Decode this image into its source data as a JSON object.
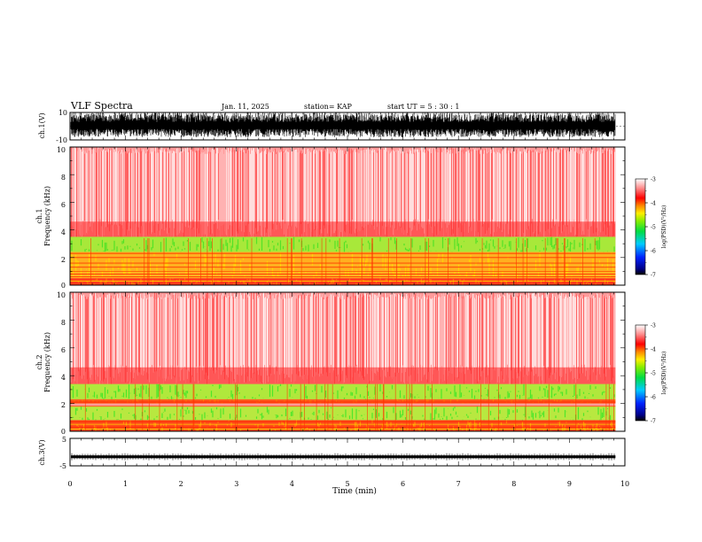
{
  "header": {
    "title": "VLF Spectra",
    "date": "Jan. 11, 2025",
    "station": "station= KAP",
    "start": "start  UT =   5 : 30 : 1"
  },
  "chart_data": [
    {
      "type": "line",
      "id": "ch1-waveform",
      "ylabel": "ch.1(V)",
      "ylim": [
        -10,
        10
      ],
      "ytick_labels": [
        "10",
        "-10"
      ],
      "xlim": [
        0,
        10
      ],
      "data_end_min": 9.83,
      "description": "dense black waveform, amplitude mostly between -8 V and 10 V"
    },
    {
      "type": "heatmap",
      "id": "ch1-spectrogram",
      "ylabel": "ch.1",
      "ylabel2": "Frequency (kHz)",
      "ylim": [
        0,
        10
      ],
      "ytick_labels": [
        "0",
        "2",
        "4",
        "6",
        "8",
        "10"
      ],
      "xlim": [
        0,
        10
      ],
      "colorbar": {
        "label": "log(PSD)(V²/Hz)",
        "range": [
          -7,
          -3
        ],
        "tick_labels": [
          "-3",
          "-4",
          "-5",
          "-6",
          "-7"
        ]
      },
      "bands_khz": [
        {
          "from": 3.5,
          "to": 10,
          "level": "weak (log PSD about -3.3 to -3.8, white/pink/red)"
        },
        {
          "from": 2.4,
          "to": 3.5,
          "level": "green-yellow (log PSD about -4.5)"
        },
        {
          "from": 0.5,
          "to": 2.4,
          "level": "yellow-orange-red with horizontal lines"
        },
        {
          "from": 0,
          "to": 0.5,
          "level": "red"
        }
      ]
    },
    {
      "type": "heatmap",
      "id": "ch2-spectrogram",
      "ylabel": "ch.2",
      "ylabel2": "Frequency (kHz)",
      "ylim": [
        0,
        10
      ],
      "ytick_labels": [
        "0",
        "2",
        "4",
        "6",
        "8",
        "10"
      ],
      "xlim": [
        0,
        10
      ],
      "colorbar": {
        "label": "log(PSD)(V²/Hz)",
        "range": [
          -7,
          -3
        ],
        "tick_labels": [
          "-3",
          "-4",
          "-5",
          "-6",
          "-7"
        ]
      },
      "bands_khz": [
        {
          "from": 3.5,
          "to": 10,
          "level": "weak (white/pink/red)"
        },
        {
          "from": 2.3,
          "to": 3.4,
          "level": "green-yellow"
        },
        {
          "from": 2.0,
          "to": 2.3,
          "level": "orange-red line"
        },
        {
          "from": 0.8,
          "to": 1.8,
          "level": "green-yellow"
        },
        {
          "from": 0,
          "to": 0.8,
          "level": "red-orange lines"
        }
      ]
    },
    {
      "type": "line",
      "id": "ch3-waveform",
      "ylabel": "ch.3(V)",
      "ylim": [
        -5,
        5
      ],
      "ytick_labels": [
        "5",
        "-5"
      ],
      "xlim": [
        0,
        10
      ],
      "xlabel": "Time  (min)",
      "xtick_labels": [
        "0",
        "1",
        "2",
        "3",
        "4",
        "5",
        "6",
        "7",
        "8",
        "9",
        "10"
      ],
      "signal_band_v": [
        -2.2,
        -1.2
      ],
      "data_end_min": 9.83
    }
  ],
  "colors": {
    "axis": "#000000",
    "background": "#ffffff"
  }
}
